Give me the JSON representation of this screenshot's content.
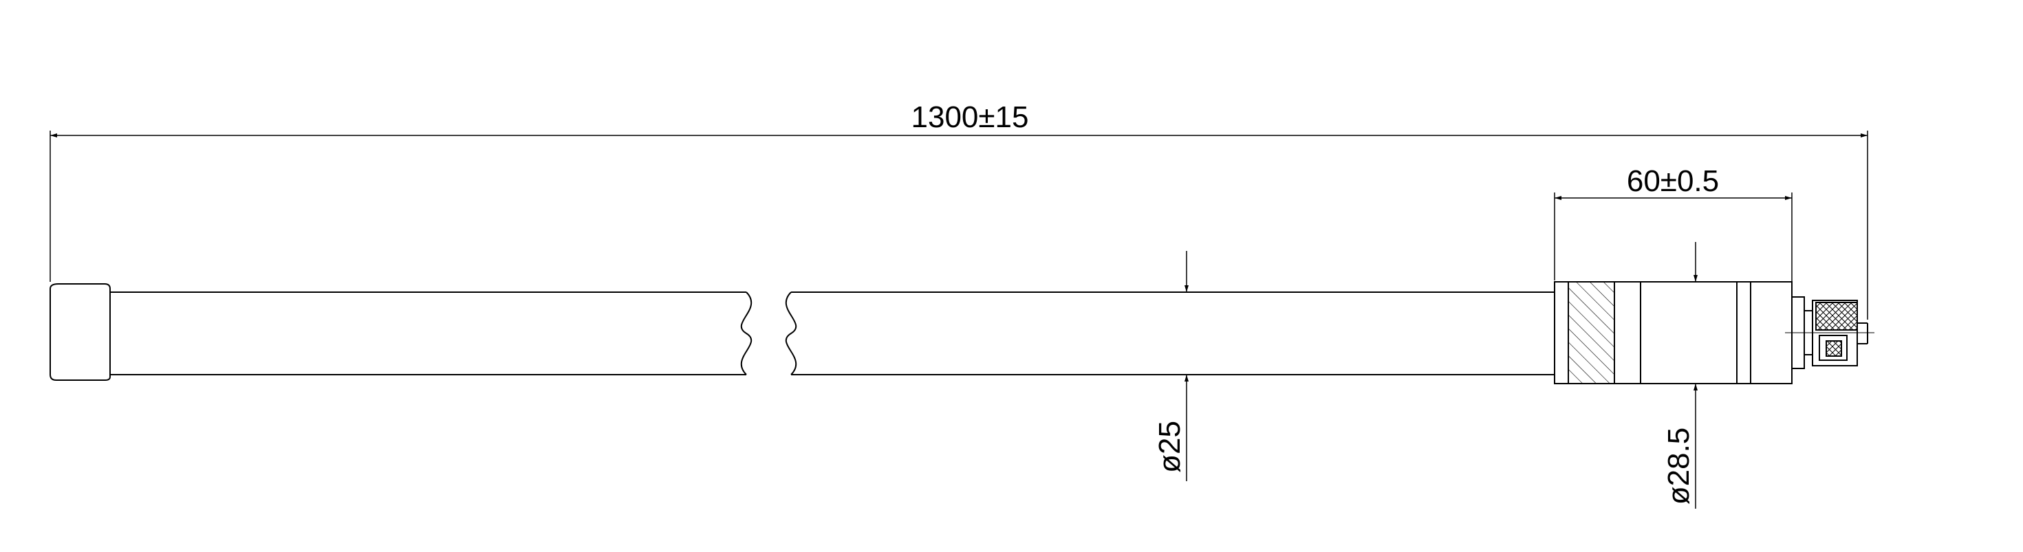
{
  "dimensions": {
    "overall_length": "1300±15",
    "connector_length": "60±0.5",
    "tube_diameter": "ø25",
    "sleeve_diameter": "ø28.5"
  },
  "colors": {
    "line": "#000000",
    "background": "#ffffff"
  }
}
